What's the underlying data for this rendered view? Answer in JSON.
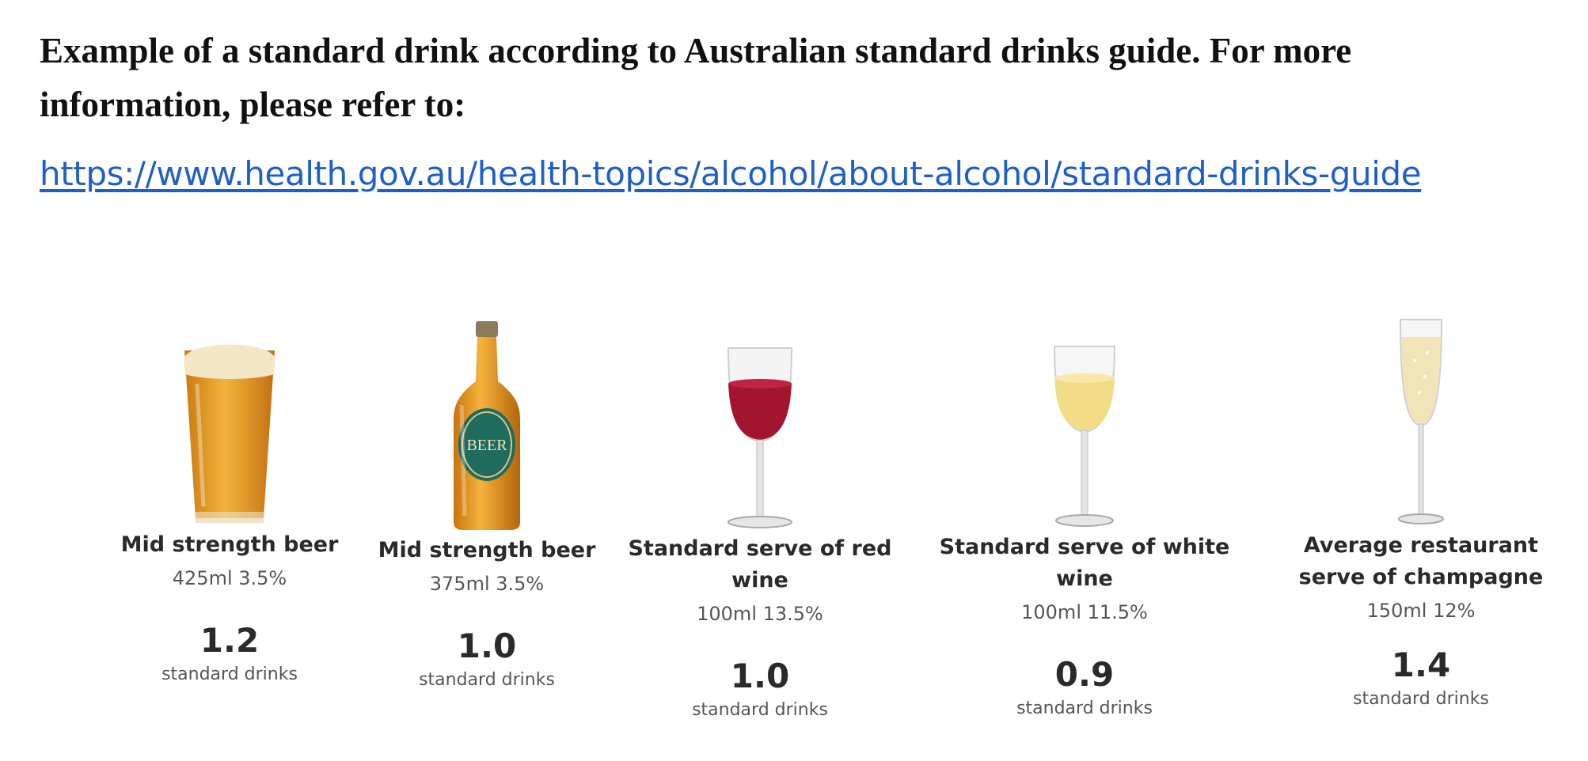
{
  "intro": {
    "text": "Example of a standard drink according to Australian standard drinks guide. For more information, please refer to:",
    "link": "https://www.health.gov.au/health-topics/alcohol/about-alcohol/standard-drinks-guide"
  },
  "drinks": [
    {
      "name": "Mid strength beer",
      "spec": "425ml 3.5%",
      "value": "1.2",
      "unit": "standard drinks",
      "icon": "beer-glass-icon"
    },
    {
      "name": "Mid strength beer",
      "spec": "375ml 3.5%",
      "value": "1.0",
      "unit": "standard drinks",
      "icon": "beer-bottle-icon",
      "label_text": "BEER"
    },
    {
      "name": "Standard serve of red wine",
      "spec": "100ml 13.5%",
      "value": "1.0",
      "unit": "standard drinks",
      "icon": "red-wine-glass-icon"
    },
    {
      "name": "Standard serve of white wine",
      "spec": "100ml 11.5%",
      "value": "0.9",
      "unit": "standard drinks",
      "icon": "white-wine-glass-icon"
    },
    {
      "name": "Average restaurant serve of champagne",
      "spec": "150ml 12%",
      "value": "1.4",
      "unit": "standard drinks",
      "icon": "champagne-flute-icon"
    }
  ],
  "colors": {
    "link": "#1f5fcc",
    "beer": "#e7a12a",
    "red_wine": "#a3142e",
    "white_wine": "#f3dc86",
    "bottle_label": "#1f6b5e"
  }
}
